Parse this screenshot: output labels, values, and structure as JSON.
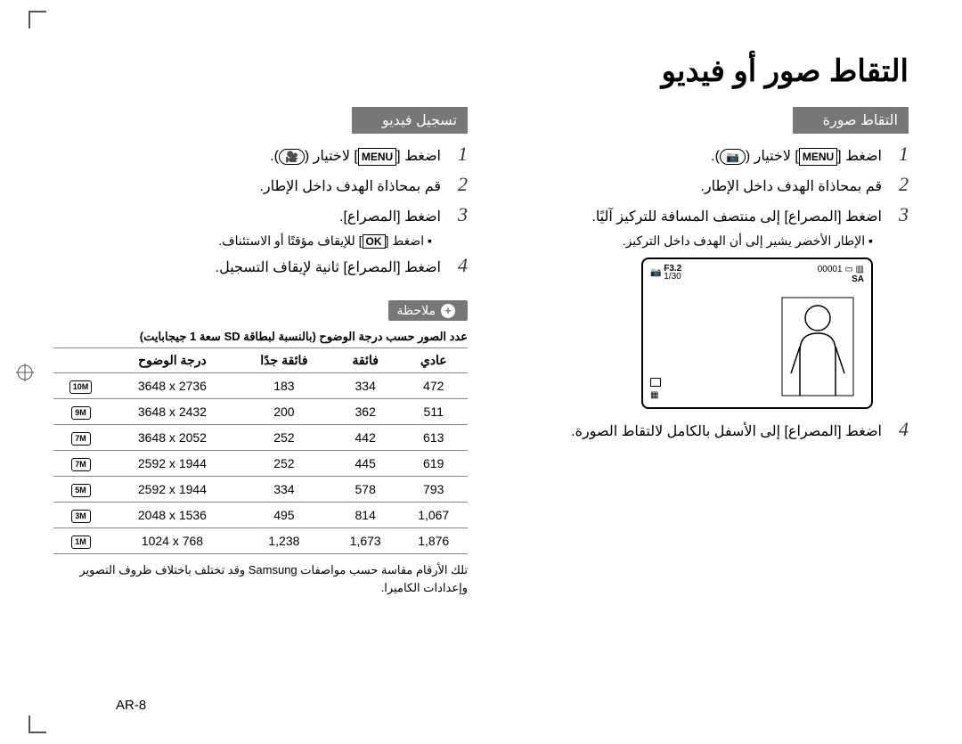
{
  "title": "التقاط صور أو فيديو",
  "page_label": "AR-8",
  "right_col": {
    "header": "التقاط صورة",
    "steps": [
      {
        "n": "1",
        "pre": "اضغط [",
        "btn": "MENU",
        "post": "] لاختيار (",
        "icon": "📷",
        "tail": ")."
      },
      {
        "n": "2",
        "pre": "قم بمحاذاة الهدف داخل الإطار.",
        "btn": "",
        "post": "",
        "icon": "",
        "tail": ""
      },
      {
        "n": "3",
        "pre": "اضغط [",
        "btn": "",
        "post": "المصراع] إلى منتصف المسافة للتركيز آليًا.",
        "icon": "",
        "tail": ""
      }
    ],
    "bullet": "الإطار الأخضر يشير إلى أن الهدف داخل التركيز.",
    "step4": {
      "n": "4",
      "text": "اضغط [المصراع] إلى الأسفل بالكامل لالتقاط الصورة."
    }
  },
  "screen": {
    "tl1": "F3.2",
    "tl2": "1/30",
    "tr": "00001",
    "sa": "SA"
  },
  "left_col": {
    "header": "تسجيل فيديو",
    "steps": [
      {
        "n": "1",
        "pre": "اضغط [",
        "btn": "MENU",
        "post": "] لاختيار (",
        "icon": "🎥",
        "tail": ")."
      },
      {
        "n": "2",
        "pre": "قم بمحاذاة الهدف داخل الإطار.",
        "btn": "",
        "post": "",
        "icon": "",
        "tail": ""
      },
      {
        "n": "3",
        "pre": "اضغط [المصراع].",
        "btn": "",
        "post": "",
        "icon": "",
        "tail": ""
      }
    ],
    "bullet_pre": "اضغط [",
    "bullet_btn": "OK",
    "bullet_post": "] للإيقاف مؤقتًا أو الاستئناف.",
    "step4": {
      "n": "4",
      "text": "اضغط [المصراع] ثانية لإيقاف التسجيل."
    },
    "note_label": "ملاحظة",
    "table_caption": "عدد الصور حسب درجة الوضوح (بالنسبة لبطاقة SD سعة 1 جيجابايت)",
    "table_headers": [
      "",
      "درجة الوضوح",
      "فائقة جدًا",
      "فائقة",
      "عادي"
    ],
    "table_rows": [
      {
        "icon": "10M",
        "res": "3648 x 2736",
        "c1": "183",
        "c2": "334",
        "c3": "472"
      },
      {
        "icon": "9M",
        "res": "3648 x 2432",
        "c1": "200",
        "c2": "362",
        "c3": "511"
      },
      {
        "icon": "7M",
        "res": "3648 x 2052",
        "c1": "252",
        "c2": "442",
        "c3": "613"
      },
      {
        "icon": "7M",
        "res": "2592 x 1944",
        "c1": "252",
        "c2": "445",
        "c3": "619"
      },
      {
        "icon": "5M",
        "res": "2592 x 1944",
        "c1": "334",
        "c2": "578",
        "c3": "793"
      },
      {
        "icon": "3M",
        "res": "2048 x 1536",
        "c1": "495",
        "c2": "814",
        "c3": "1,067"
      },
      {
        "icon": "1M",
        "res": "1024 x 768",
        "c1": "1,238",
        "c2": "1,673",
        "c3": "1,876"
      }
    ],
    "footnote": "تلك الأرقام مقاسة حسب مواصفات Samsung وقد تختلف باختلاف ظروف التصوير وإعدادات الكاميرا."
  }
}
